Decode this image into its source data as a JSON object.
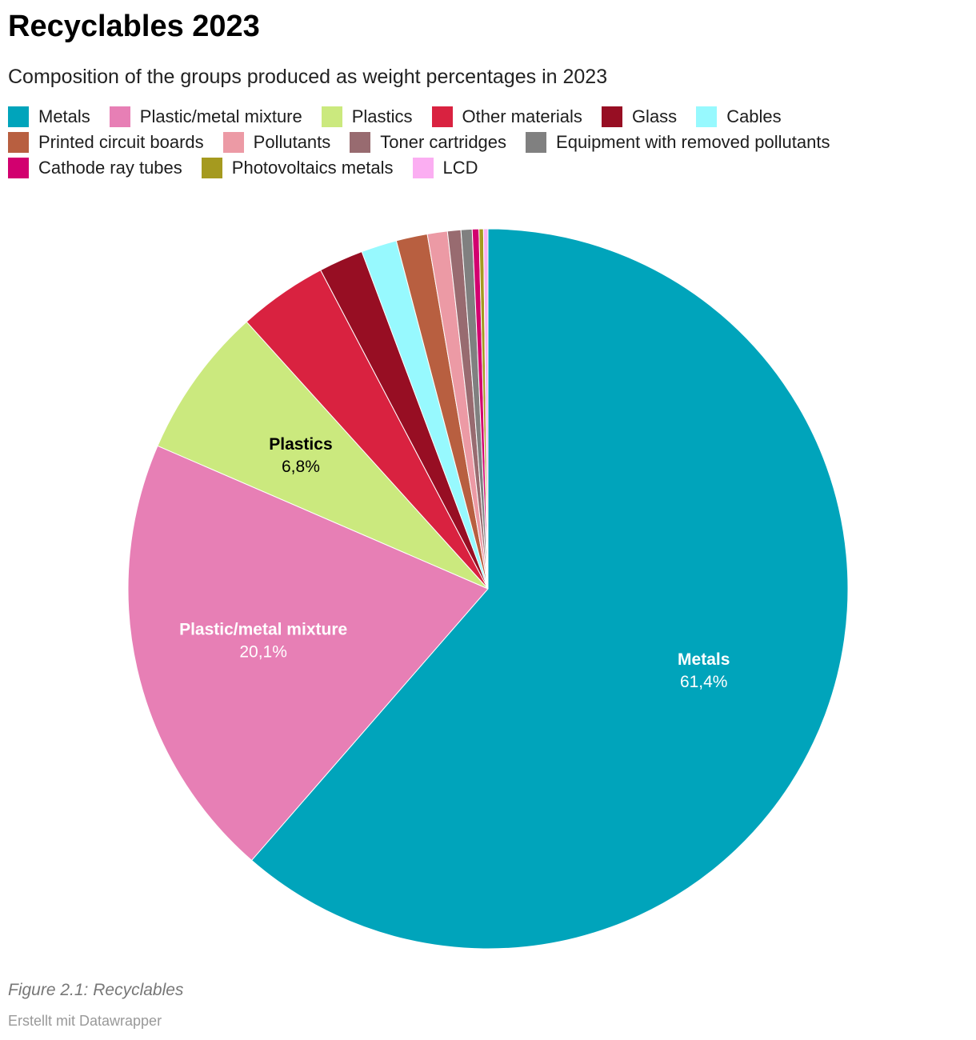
{
  "title": "Recyclables 2023",
  "subtitle": "Composition of the groups produced as weight percentages in 2023",
  "footer": {
    "figure": "Figure 2.1: Recyclables",
    "credit": "Erstellt mit Datawrapper"
  },
  "chart_data": {
    "type": "pie",
    "title": "Recyclables 2023",
    "unit": "%",
    "legend_position": "top",
    "slices": [
      {
        "name": "Metals",
        "value": 61.4,
        "color": "#00a4bb",
        "label": "61,4%",
        "labelled": true,
        "label_color": "#ffffff"
      },
      {
        "name": "Plastic/metal mixture",
        "value": 20.1,
        "color": "#e77fb5",
        "label": "20,1%",
        "labelled": true,
        "label_color": "#ffffff"
      },
      {
        "name": "Plastics",
        "value": 6.8,
        "color": "#cbe97e",
        "label": "6,8%",
        "labelled": true,
        "label_color": "#000000"
      },
      {
        "name": "Other materials",
        "value": 4.0,
        "color": "#d92240",
        "labelled": false
      },
      {
        "name": "Glass",
        "value": 2.0,
        "color": "#970e23",
        "labelled": false
      },
      {
        "name": "Cables",
        "value": 1.6,
        "color": "#97f9fe",
        "labelled": false
      },
      {
        "name": "Printed circuit boards",
        "value": 1.4,
        "color": "#b85f40",
        "labelled": false
      },
      {
        "name": "Pollutants",
        "value": 0.9,
        "color": "#ec9aa5",
        "labelled": false
      },
      {
        "name": "Toner cartridges",
        "value": 0.6,
        "color": "#986b70",
        "labelled": false
      },
      {
        "name": "Equipment with removed pollutants",
        "value": 0.5,
        "color": "#808080",
        "labelled": false
      },
      {
        "name": "Cathode ray tubes",
        "value": 0.3,
        "color": "#d2006f",
        "labelled": false
      },
      {
        "name": "Photovoltaics metals",
        "value": 0.2,
        "color": "#a59a1f",
        "labelled": false
      },
      {
        "name": "LCD",
        "value": 0.2,
        "color": "#fbaef2",
        "labelled": false
      }
    ]
  }
}
